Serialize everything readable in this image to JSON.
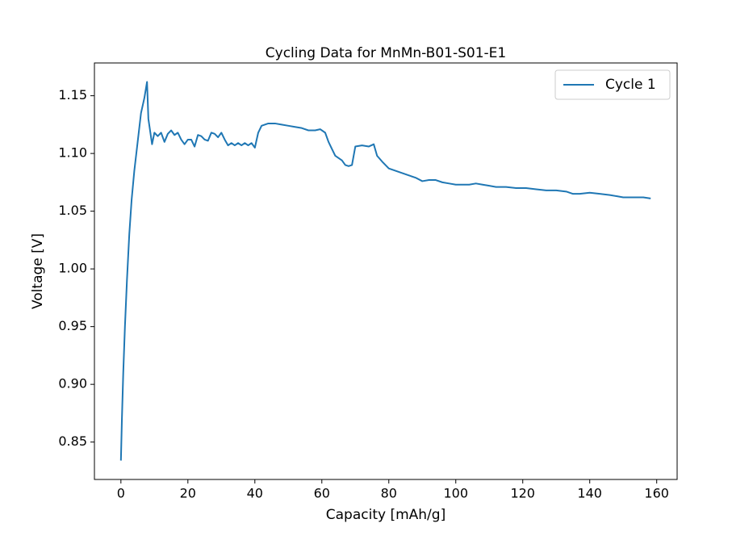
{
  "chart_data": {
    "type": "line",
    "title": "Cycling Data for MnMn-B01-S01-E1",
    "x_label": "Capacity [mAh/g]",
    "y_label": "Voltage [V]",
    "xlim": [
      -7.91,
      166.1
    ],
    "ylim": [
      0.8176,
      1.1784
    ],
    "xticks": [
      0,
      20,
      40,
      60,
      80,
      100,
      120,
      140,
      160
    ],
    "yticks": [
      0.85,
      {
        "value": 0.9,
        "label": "0.90"
      },
      0.95,
      {
        "value": 1.0,
        "label": "1.00"
      },
      1.05,
      {
        "value": 1.1,
        "label": "1.10"
      },
      1.15
    ],
    "legend": "upper right",
    "series": [
      {
        "name": "Cycle 1",
        "color": "#1f77b4",
        "x": [
          0,
          0.3,
          0.7,
          1.2,
          1.8,
          2.5,
          3.2,
          4,
          5,
          6,
          7,
          7.8,
          8.2,
          8.7,
          9.3,
          10,
          11,
          12,
          13,
          14,
          15,
          16,
          17,
          18,
          19,
          20,
          21,
          22,
          23,
          24,
          25,
          26,
          27,
          28,
          29,
          30,
          31,
          32,
          33,
          34,
          35,
          36,
          37,
          38,
          39,
          40,
          41,
          42,
          44,
          46,
          48,
          50,
          52,
          54,
          56,
          58,
          59.5,
          61,
          62,
          63,
          64,
          65,
          66,
          67,
          68,
          69,
          70,
          72,
          74,
          75.5,
          76.5,
          78,
          80,
          82,
          84,
          86,
          88,
          90,
          92,
          94,
          96,
          98,
          100,
          102,
          104,
          106,
          108,
          110,
          112,
          115,
          118,
          121,
          124,
          127,
          130,
          133,
          135,
          137,
          140,
          143,
          146,
          148,
          150,
          153,
          156,
          158.2
        ],
        "values": [
          0.834,
          0.87,
          0.91,
          0.95,
          0.99,
          1.03,
          1.06,
          1.085,
          1.11,
          1.135,
          1.148,
          1.162,
          1.13,
          1.12,
          1.108,
          1.118,
          1.115,
          1.118,
          1.11,
          1.117,
          1.12,
          1.116,
          1.118,
          1.112,
          1.108,
          1.112,
          1.112,
          1.106,
          1.116,
          1.115,
          1.112,
          1.111,
          1.118,
          1.117,
          1.114,
          1.118,
          1.112,
          1.107,
          1.109,
          1.107,
          1.109,
          1.107,
          1.109,
          1.107,
          1.109,
          1.105,
          1.118,
          1.124,
          1.126,
          1.126,
          1.125,
          1.124,
          1.123,
          1.122,
          1.12,
          1.12,
          1.121,
          1.118,
          1.11,
          1.104,
          1.098,
          1.096,
          1.094,
          1.09,
          1.089,
          1.09,
          1.106,
          1.107,
          1.106,
          1.108,
          1.098,
          1.093,
          1.087,
          1.085,
          1.083,
          1.081,
          1.079,
          1.076,
          1.077,
          1.077,
          1.075,
          1.074,
          1.073,
          1.073,
          1.073,
          1.074,
          1.073,
          1.072,
          1.071,
          1.071,
          1.07,
          1.07,
          1.069,
          1.068,
          1.068,
          1.067,
          1.065,
          1.065,
          1.066,
          1.065,
          1.064,
          1.063,
          1.062,
          1.062,
          1.062,
          1.061
        ]
      }
    ]
  }
}
